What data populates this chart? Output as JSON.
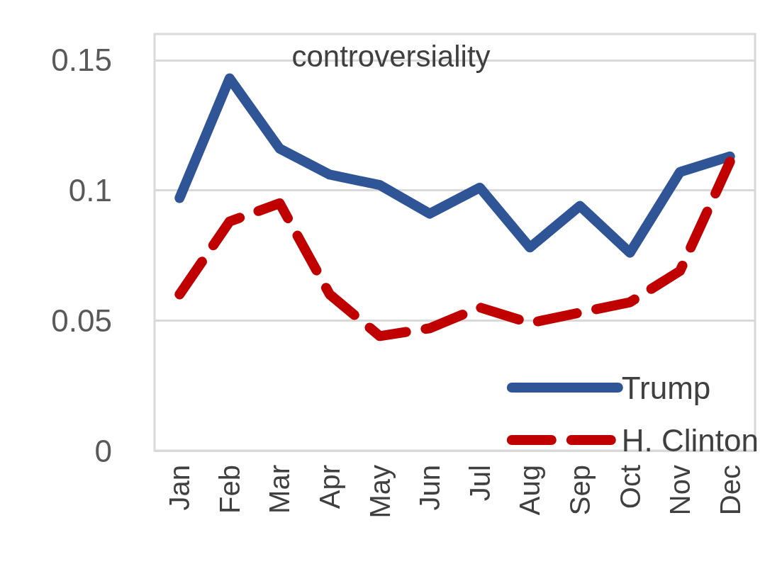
{
  "chart_data": {
    "type": "line",
    "title": "controversiality",
    "categories": [
      "Jan",
      "Feb",
      "Mar",
      "Apr",
      "May",
      "Jun",
      "Jul",
      "Aug",
      "Sep",
      "Oct",
      "Nov",
      "Dec"
    ],
    "series": [
      {
        "name": "Trump",
        "color": "#2f5597",
        "line_style": "solid",
        "values": [
          0.097,
          0.143,
          0.116,
          0.106,
          0.102,
          0.091,
          0.101,
          0.078,
          0.094,
          0.076,
          0.107,
          0.113
        ]
      },
      {
        "name": "H. Clinton",
        "color": "#c00000",
        "line_style": "dashed",
        "values": [
          0.06,
          0.088,
          0.095,
          0.06,
          0.044,
          0.047,
          0.055,
          0.049,
          0.053,
          0.057,
          0.069,
          0.111
        ]
      }
    ],
    "ylim": [
      0,
      0.16
    ],
    "yticks": [
      0,
      0.05,
      0.1,
      0.15
    ],
    "grid": "y",
    "legend": "bottom right",
    "marker": "none"
  }
}
